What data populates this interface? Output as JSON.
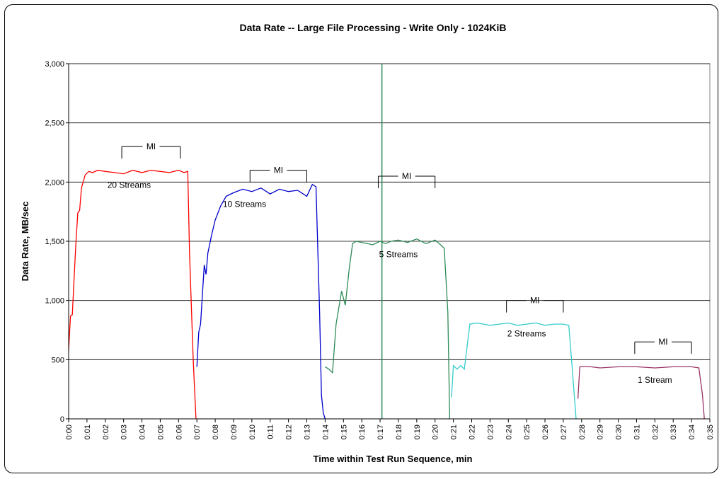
{
  "chart_data": {
    "type": "line",
    "title": "Data Rate -- Large File Processing - Write Only - 1024KiB",
    "xlabel": "Time within Test Run Sequence, min",
    "ylabel": "Data Rate, MB/sec",
    "ylim": [
      0,
      3000
    ],
    "xlim_minutes": [
      0,
      35
    ],
    "x_ticks": [
      "0:00",
      "0:01",
      "0:02",
      "0:03",
      "0:04",
      "0:05",
      "0:06",
      "0:07",
      "0:08",
      "0:09",
      "0:10",
      "0:11",
      "0:12",
      "0:13",
      "0:14",
      "0:15",
      "0:16",
      "0:17",
      "0:18",
      "0:19",
      "0:20",
      "0:21",
      "0:22",
      "0:23",
      "0:24",
      "0:25",
      "0:26",
      "0:27",
      "0:28",
      "0:29",
      "0:30",
      "0:31",
      "0:32",
      "0:33",
      "0:34",
      "0:35"
    ],
    "y_ticks": [
      "0",
      "500",
      "1,000",
      "1,500",
      "2,000",
      "2,500",
      "3,000"
    ],
    "y_tick_values": [
      0,
      500,
      1000,
      1500,
      2000,
      2500,
      3000
    ],
    "grid": "horizontal",
    "marker_line_x_minutes": 17.1,
    "series": [
      {
        "label": "20 Streams",
        "color": "#ff0000",
        "x": [
          0.0,
          0.1,
          0.2,
          0.3,
          0.4,
          0.5,
          0.6,
          0.7,
          0.9,
          1.1,
          1.3,
          1.6,
          2.0,
          2.5,
          3.0,
          3.5,
          4.0,
          4.5,
          5.0,
          5.5,
          6.0,
          6.3,
          6.5,
          6.6,
          6.8,
          6.95
        ],
        "y": [
          580,
          870,
          880,
          1200,
          1500,
          1740,
          1760,
          1950,
          2060,
          2090,
          2080,
          2100,
          2090,
          2080,
          2070,
          2100,
          2080,
          2100,
          2090,
          2080,
          2100,
          2080,
          2090,
          1400,
          500,
          0
        ]
      },
      {
        "label": "10 Streams",
        "color": "#0000cc",
        "x": [
          7.0,
          7.1,
          7.2,
          7.4,
          7.5,
          7.6,
          7.8,
          8.0,
          8.3,
          8.6,
          9.0,
          9.5,
          10.0,
          10.5,
          11.0,
          11.5,
          12.0,
          12.5,
          13.0,
          13.3,
          13.5,
          13.7,
          13.8,
          13.9,
          14.0
        ],
        "y": [
          440,
          730,
          800,
          1300,
          1220,
          1400,
          1550,
          1680,
          1800,
          1880,
          1910,
          1940,
          1920,
          1950,
          1900,
          1940,
          1920,
          1930,
          1880,
          1980,
          1960,
          900,
          200,
          50,
          0
        ]
      },
      {
        "label": "5 Streams",
        "color": "#2e8b57",
        "x": [
          14.0,
          14.2,
          14.4,
          14.6,
          14.9,
          15.1,
          15.3,
          15.5,
          15.7,
          16.0,
          16.3,
          16.6,
          17.0,
          17.3,
          17.6,
          18.0,
          18.5,
          19.0,
          19.5,
          20.0,
          20.3,
          20.5,
          20.7,
          20.8
        ],
        "y": [
          440,
          420,
          390,
          800,
          1080,
          960,
          1250,
          1480,
          1500,
          1490,
          1480,
          1470,
          1500,
          1480,
          1500,
          1510,
          1490,
          1520,
          1480,
          1510,
          1470,
          1440,
          900,
          0
        ]
      },
      {
        "label": "2 Streams",
        "color": "#33cccc",
        "x": [
          20.9,
          21.0,
          21.2,
          21.4,
          21.6,
          21.9,
          22.3,
          23.0,
          23.5,
          24.0,
          24.5,
          25.0,
          25.5,
          26.0,
          26.5,
          27.0,
          27.3,
          27.5,
          27.7
        ],
        "y": [
          180,
          450,
          420,
          450,
          420,
          800,
          810,
          790,
          800,
          810,
          790,
          800,
          810,
          790,
          800,
          800,
          790,
          400,
          0
        ]
      },
      {
        "label": "1 Stream",
        "color": "#993366",
        "x": [
          27.8,
          27.9,
          28.5,
          29.0,
          30.0,
          31.0,
          32.0,
          33.0,
          34.0,
          34.4,
          34.6,
          34.7
        ],
        "y": [
          170,
          440,
          440,
          430,
          440,
          440,
          430,
          440,
          440,
          430,
          200,
          0
        ]
      }
    ],
    "annotations": [
      {
        "text": "20 Streams",
        "x": 3.3,
        "y": 1950
      },
      {
        "text": "10 Streams",
        "x": 9.6,
        "y": 1790
      },
      {
        "text": "5 Streams",
        "x": 18.0,
        "y": 1365
      },
      {
        "text": "2 Streams",
        "x": 25.0,
        "y": 695
      },
      {
        "text": "1 Stream",
        "x": 32.0,
        "y": 305
      }
    ],
    "mi_brackets": [
      {
        "text": "MI",
        "x_start": 2.9,
        "x_end": 6.1,
        "y": 2300
      },
      {
        "text": "MI",
        "x_start": 9.9,
        "x_end": 13.0,
        "y": 2100
      },
      {
        "text": "MI",
        "x_start": 16.9,
        "x_end": 20.0,
        "y": 2050
      },
      {
        "text": "MI",
        "x_start": 23.9,
        "x_end": 27.0,
        "y": 1000
      },
      {
        "text": "MI",
        "x_start": 30.9,
        "x_end": 34.0,
        "y": 650
      }
    ]
  }
}
